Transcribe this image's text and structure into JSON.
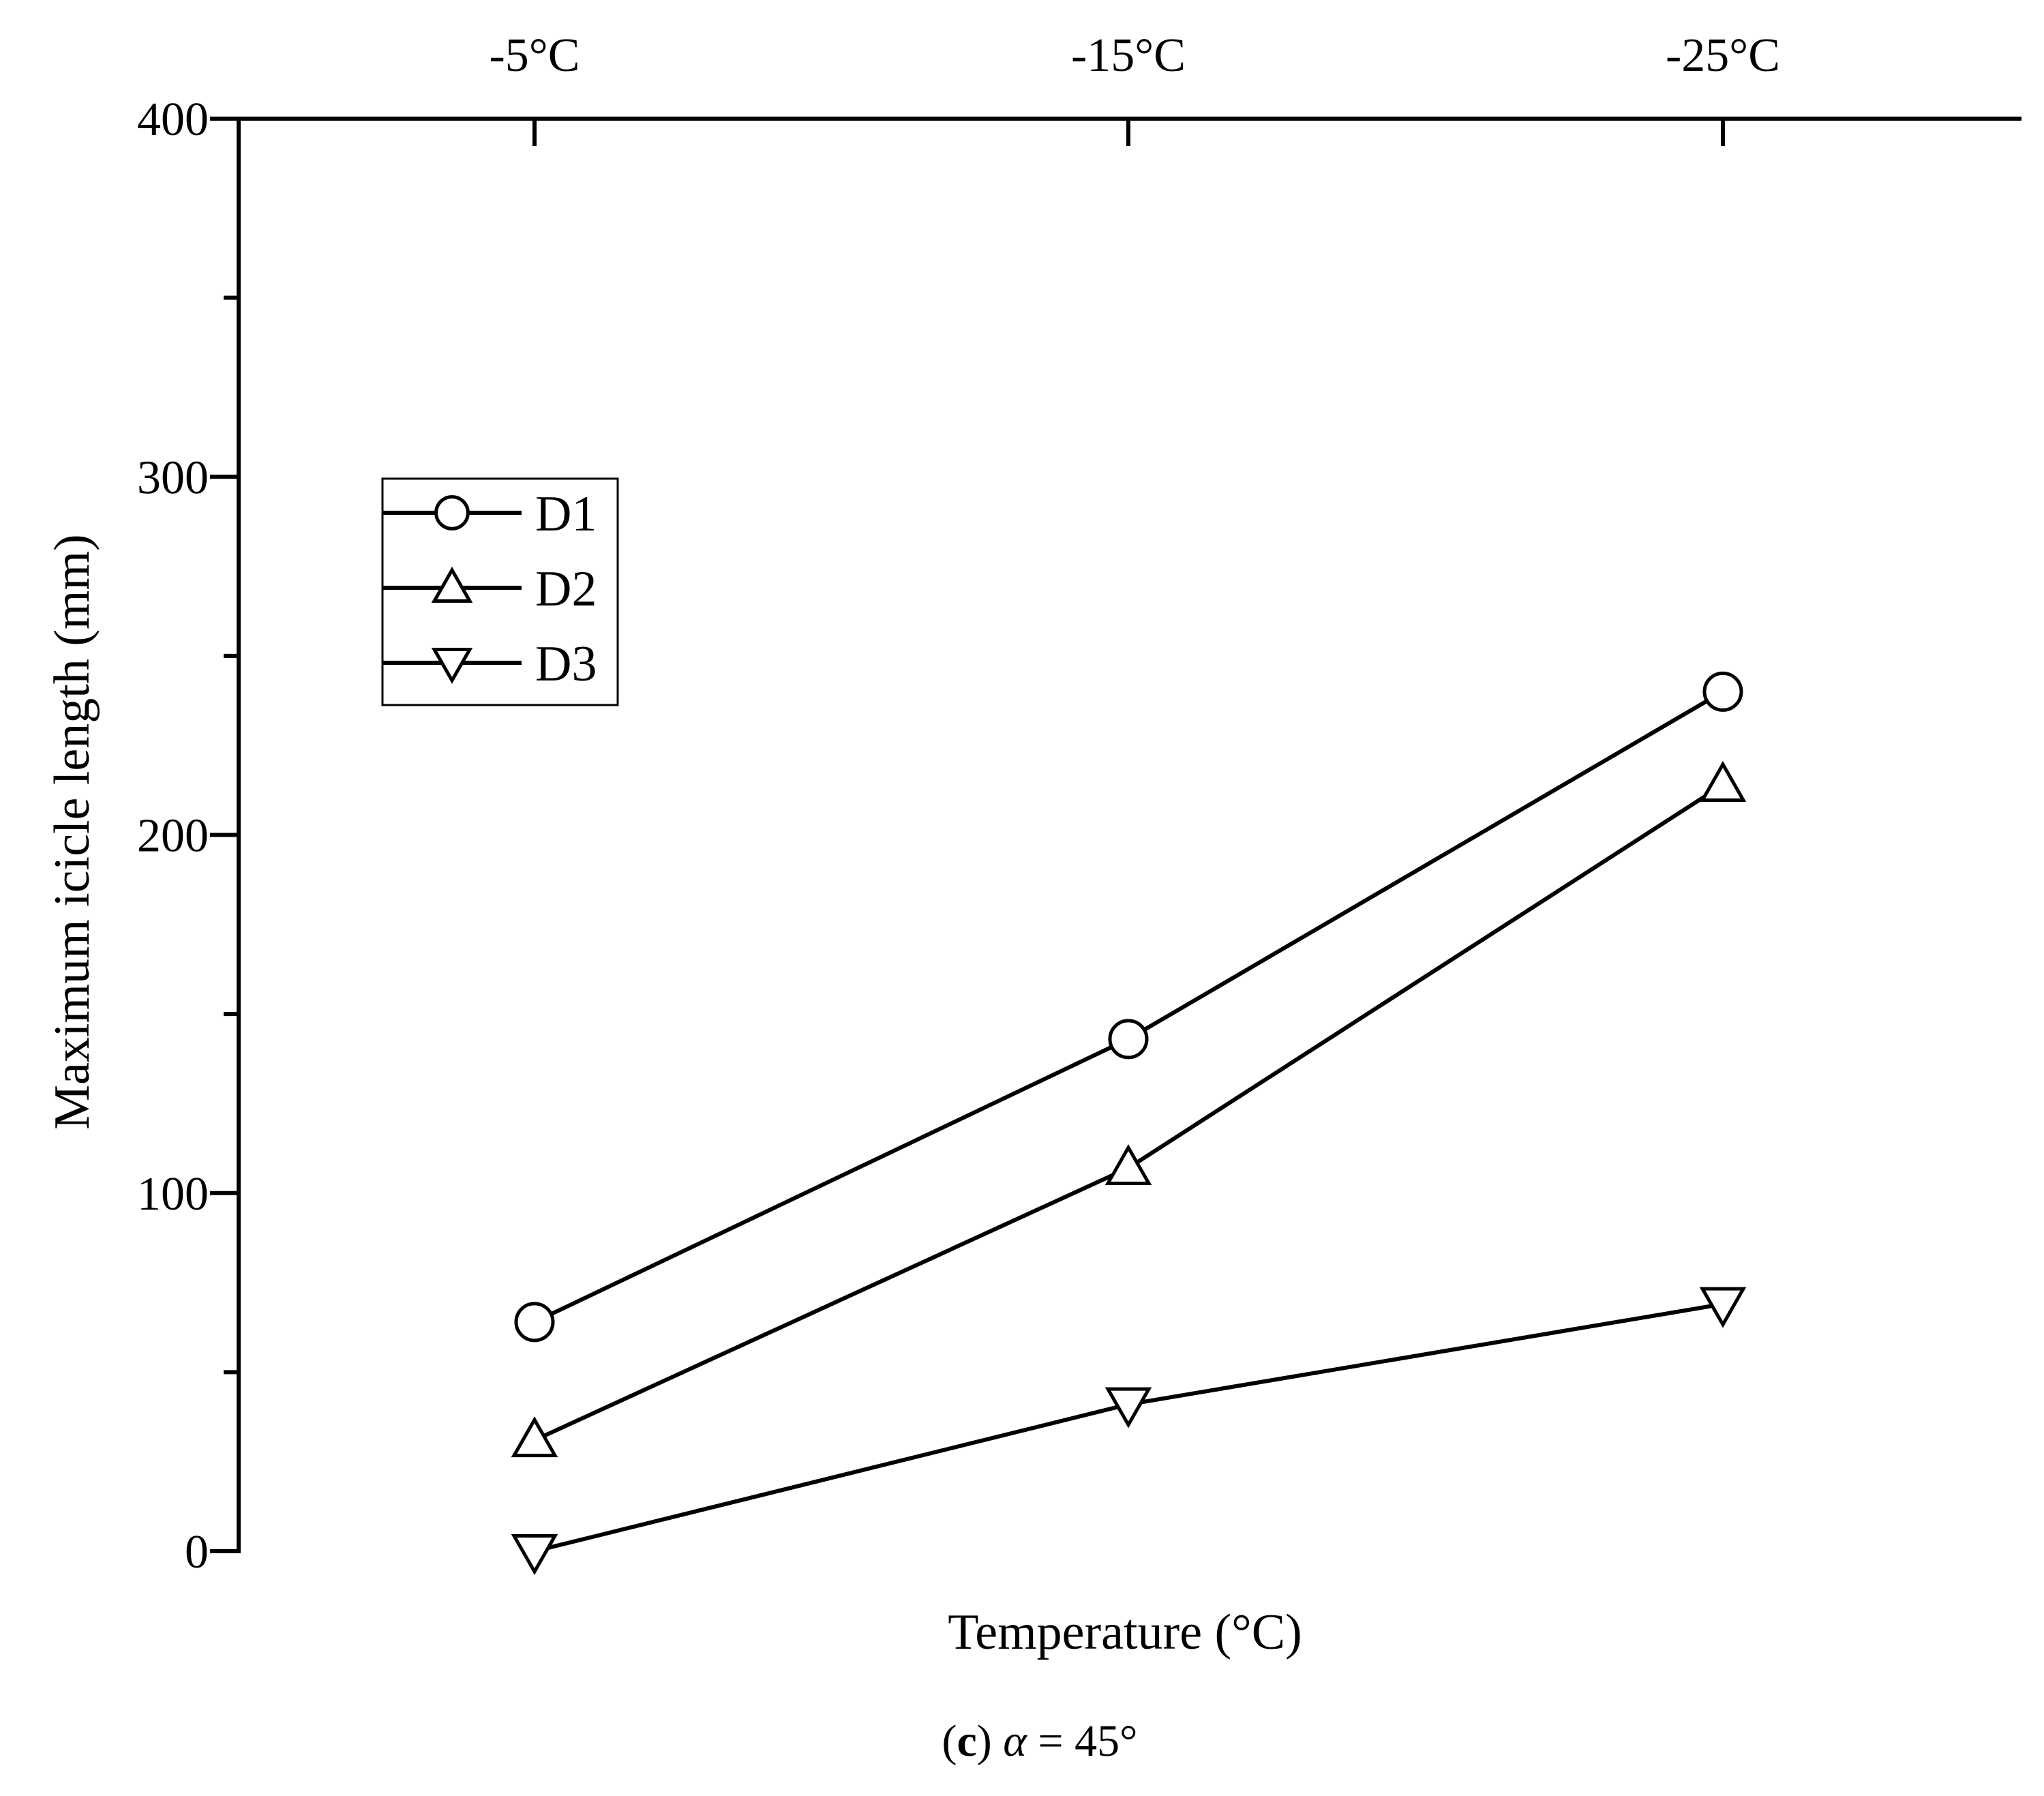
{
  "chart_data": {
    "type": "line",
    "title": "",
    "xlabel": "Temperature (°C)",
    "ylabel": "Maximum icicle length (mm)",
    "categories": [
      "-5°C",
      "-15°C",
      "-25°C"
    ],
    "ylim": [
      0,
      400
    ],
    "yticks": [
      0,
      100,
      200,
      300,
      400
    ],
    "yticks_minor": [
      50,
      150,
      250,
      350
    ],
    "ytick_labels": [
      "0",
      "100",
      "200",
      "300",
      "400"
    ],
    "xaxis_position": "top",
    "grid": false,
    "legend_position": "upper-left",
    "series": [
      {
        "name": "D1",
        "marker": "circle",
        "values": [
          64,
          143,
          240
        ]
      },
      {
        "name": "D2",
        "marker": "triangle-up",
        "values": [
          31,
          107,
          214
        ]
      },
      {
        "name": "D3",
        "marker": "triangle-down",
        "values": [
          0,
          41,
          69
        ]
      }
    ],
    "caption": {
      "label": "c",
      "alpha_symbol": "α",
      "rest": " = 45°"
    }
  }
}
